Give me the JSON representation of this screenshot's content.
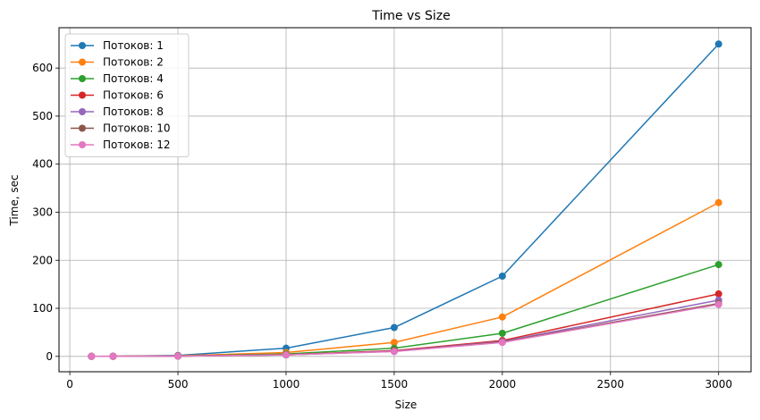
{
  "chart_data": {
    "type": "line",
    "title": "Time vs Size",
    "xlabel": "Size",
    "ylabel": "Time, sec",
    "xlim": [
      -50,
      3150
    ],
    "ylim": [
      -32,
      684
    ],
    "xticks": [
      0,
      500,
      1000,
      1500,
      2000,
      2500,
      3000
    ],
    "yticks": [
      0,
      100,
      200,
      300,
      400,
      500,
      600
    ],
    "grid": true,
    "legend_position": "top-left",
    "x": [
      100,
      200,
      500,
      1000,
      1500,
      2000,
      3000
    ],
    "series": [
      {
        "name": "Потоков: 1",
        "color": "#1f77b4",
        "values": [
          0.1,
          0.3,
          2,
          17,
          60,
          167,
          650
        ]
      },
      {
        "name": "Потоков: 2",
        "color": "#ff7f0e",
        "values": [
          0.1,
          0.2,
          1.2,
          8,
          29,
          82,
          320
        ]
      },
      {
        "name": "Потоков: 4",
        "color": "#2ca02c",
        "values": [
          0.1,
          0.1,
          0.8,
          5,
          17,
          48,
          191
        ]
      },
      {
        "name": "Потоков: 6",
        "color": "#d62728",
        "values": [
          0.05,
          0.1,
          0.6,
          3.5,
          12,
          33,
          130
        ]
      },
      {
        "name": "Потоков: 8",
        "color": "#9467bd",
        "values": [
          0.05,
          0.1,
          0.5,
          3,
          11,
          31,
          117
        ]
      },
      {
        "name": "Потоков: 10",
        "color": "#8c564b",
        "values": [
          0.05,
          0.1,
          0.5,
          3,
          10.5,
          30,
          110
        ]
      },
      {
        "name": "Потоков: 12",
        "color": "#e377c2",
        "values": [
          0.05,
          0.1,
          0.5,
          3,
          10,
          29,
          108
        ]
      }
    ]
  }
}
